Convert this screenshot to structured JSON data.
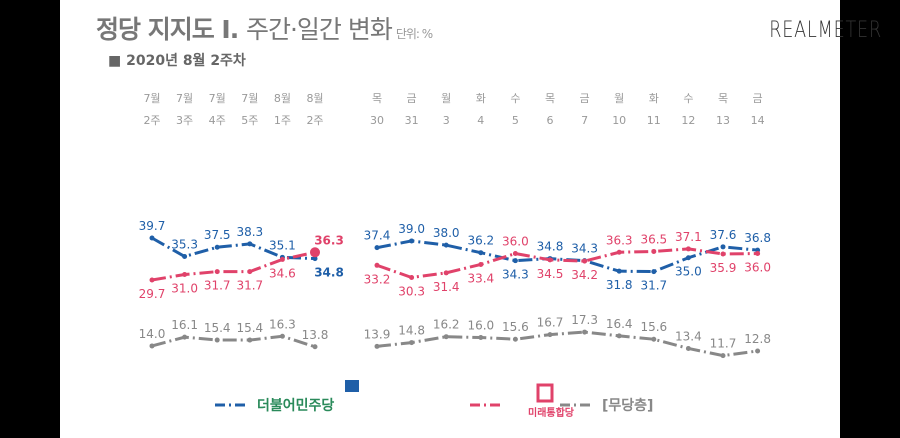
{
  "header": {
    "title_main": "정당 지지도 Ⅰ.",
    "title_sub": "주간·일간 변화",
    "unit": "단위: %",
    "subtitle": "■ 2020년 8월 2주차",
    "brand": "REALMETER"
  },
  "chart_data": {
    "type": "line",
    "groups": [
      {
        "tick_top": [
          "7월",
          "7월",
          "7월",
          "7월",
          "8월",
          "8월"
        ],
        "tick_bottom": [
          "2주",
          "3주",
          "4주",
          "5주",
          "1주",
          "2주"
        ]
      },
      {
        "tick_top": [
          "목",
          "금",
          "월",
          "화",
          "수",
          "목",
          "금",
          "월",
          "화",
          "수",
          "목",
          "금"
        ],
        "tick_bottom": [
          "30",
          "31",
          "3",
          "4",
          "5",
          "6",
          "7",
          "10",
          "11",
          "12",
          "13",
          "14"
        ]
      }
    ],
    "series": [
      {
        "name": "더불어민주당",
        "color": "#1f5fa8",
        "weekly": [
          39.7,
          35.3,
          37.5,
          38.3,
          35.1,
          34.8
        ],
        "daily": [
          37.4,
          39.0,
          38.0,
          36.2,
          34.3,
          34.8,
          34.3,
          31.8,
          31.7,
          35.0,
          37.6,
          36.8
        ]
      },
      {
        "name": "미래통합당",
        "color": "#e0426a",
        "weekly": [
          29.7,
          31.0,
          31.7,
          31.7,
          34.6,
          36.3
        ],
        "daily": [
          33.2,
          30.3,
          31.4,
          33.4,
          36.0,
          34.5,
          34.2,
          36.3,
          36.5,
          37.1,
          35.9,
          36.0
        ]
      },
      {
        "name": "[무당층]",
        "color": "#888888",
        "weekly": [
          14.0,
          16.1,
          15.4,
          15.4,
          16.3,
          13.8
        ],
        "daily": [
          13.9,
          14.8,
          16.2,
          16.0,
          15.6,
          16.7,
          17.3,
          16.4,
          15.6,
          13.4,
          11.7,
          12.8
        ]
      }
    ],
    "legend_placement": "bottom",
    "grid": false
  }
}
